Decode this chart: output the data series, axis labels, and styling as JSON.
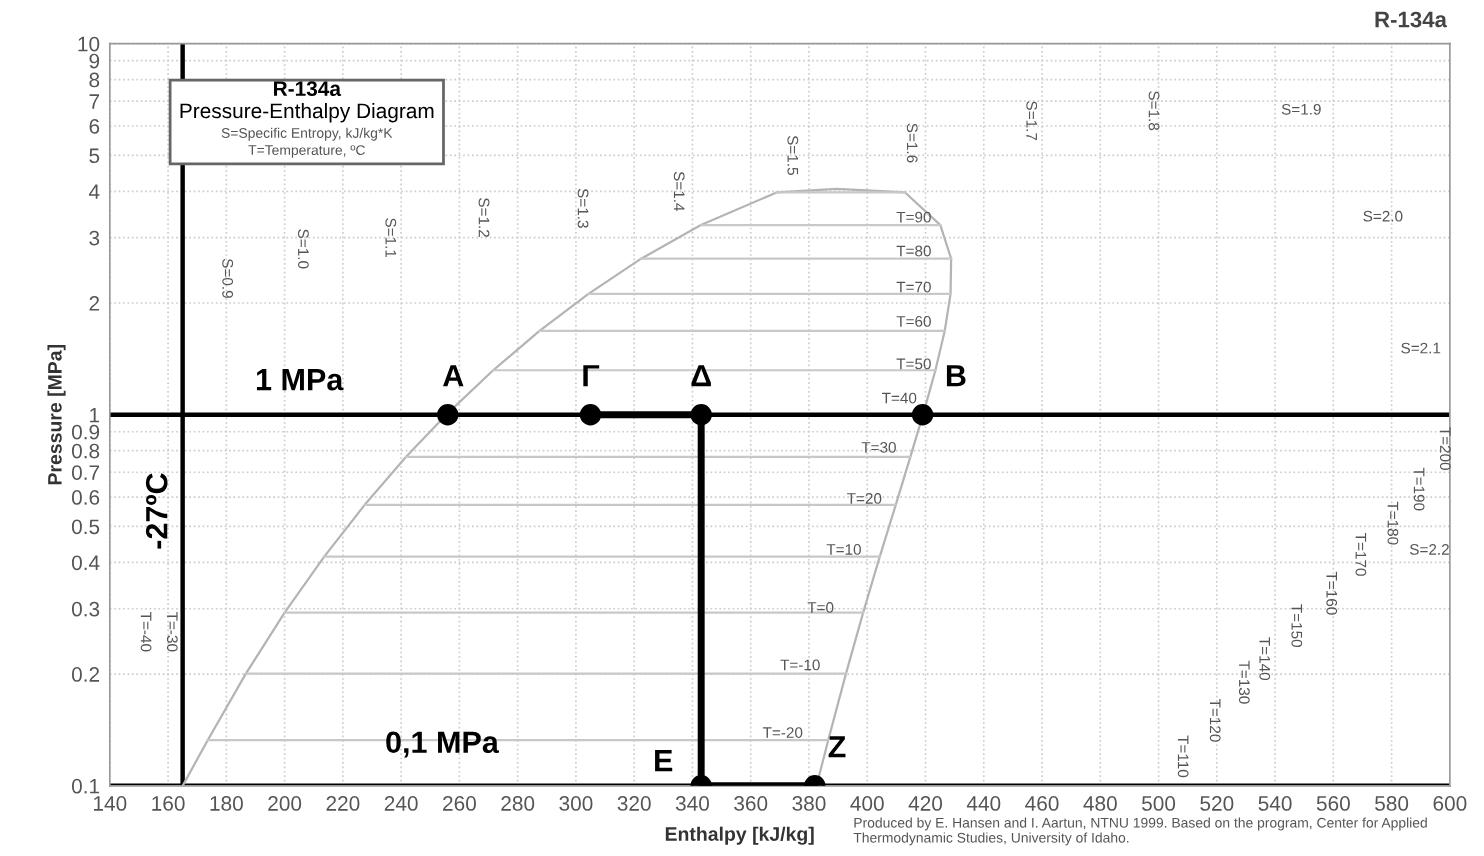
{
  "chart_data": {
    "type": "line",
    "title": "R-134a",
    "subtitle": "Pressure-Enthalpy Diagram",
    "xlabel": "Enthalpy [kJ/kg]",
    "ylabel": "Pressure [MPa]",
    "xlim": [
      140,
      600
    ],
    "xticks": [
      140,
      160,
      180,
      200,
      220,
      240,
      260,
      280,
      300,
      320,
      340,
      360,
      380,
      400,
      420,
      440,
      460,
      480,
      500,
      520,
      540,
      560,
      580,
      600
    ],
    "ylim": [
      0.1,
      10
    ],
    "yticks": [
      0.1,
      0.2,
      0.3,
      0.4,
      0.5,
      0.6,
      0.7,
      0.8,
      0.9,
      1,
      2,
      3,
      4,
      5,
      6,
      7,
      8,
      9,
      10
    ],
    "log": "y",
    "grid": true,
    "series": [
      {
        "color": "#b4b4b4",
        "x": [
          165.0,
          173.6,
          186.7,
          200.0,
          213.6,
          227.5,
          241.7,
          256.4,
          271.6,
          287.5,
          304.3,
          322.4,
          342.9,
          368.9,
          389.6,
          413.0,
          425.1,
          428.8,
          428.6,
          426.6,
          423.4,
          419.4,
          414.8,
          409.8,
          404.3,
          398.6,
          392.7,
          386.6,
          382.6
        ],
        "values": [
          0.1,
          0.1327,
          0.2006,
          0.2928,
          0.4146,
          0.5717,
          0.7702,
          1.0166,
          1.3179,
          1.6818,
          2.1168,
          2.6332,
          3.2442,
          3.972,
          4.059,
          3.972,
          3.2442,
          2.6332,
          2.1168,
          1.6818,
          1.3179,
          1.0166,
          0.7702,
          0.5717,
          0.4146,
          0.2928,
          0.2006,
          0.1327,
          0.1
        ]
      },
      {
        "color": "#c8c8c8",
        "x": [
          173.6,
          386.6
        ],
        "values": [
          0.1327,
          0.1327
        ]
      },
      {
        "color": "#c8c8c8",
        "x": [
          186.7,
          392.7
        ],
        "values": [
          0.2006,
          0.2006
        ]
      },
      {
        "color": "#c8c8c8",
        "x": [
          200.0,
          398.6
        ],
        "values": [
          0.2928,
          0.2928
        ]
      },
      {
        "color": "#c8c8c8",
        "x": [
          213.6,
          404.3
        ],
        "values": [
          0.4146,
          0.4146
        ]
      },
      {
        "color": "#c8c8c8",
        "x": [
          227.5,
          409.8
        ],
        "values": [
          0.5717,
          0.5717
        ]
      },
      {
        "color": "#c8c8c8",
        "x": [
          241.7,
          414.8
        ],
        "values": [
          0.7702,
          0.7702
        ]
      },
      {
        "color": "#c8c8c8",
        "x": [
          271.6,
          423.4
        ],
        "values": [
          1.3179,
          1.3179
        ]
      },
      {
        "color": "#c8c8c8",
        "x": [
          287.5,
          426.6
        ],
        "values": [
          1.6818,
          1.6818
        ]
      },
      {
        "color": "#c8c8c8",
        "x": [
          304.3,
          428.6
        ],
        "values": [
          2.1168,
          2.1168
        ]
      },
      {
        "color": "#c8c8c8",
        "x": [
          322.4,
          428.8
        ],
        "values": [
          2.6332,
          2.6332
        ]
      },
      {
        "color": "#c8c8c8",
        "x": [
          342.9,
          425.1
        ],
        "values": [
          3.2442,
          3.2442
        ]
      },
      {
        "color": "#c8c8c8",
        "x": [
          368.9,
          413.0
        ],
        "values": [
          3.972,
          3.972
        ]
      },
      {
        "color": "#000000",
        "x": [
          305,
          343,
          343,
          382
        ],
        "values": [
          1,
          1,
          0.1,
          0.1
        ]
      },
      {
        "type": "scatter",
        "color": "#000000",
        "marker": "circle",
        "x": [
          256,
          305,
          343,
          419,
          343,
          382
        ],
        "values": [
          1,
          1,
          1,
          1,
          0.1,
          0.1
        ]
      }
    ],
    "ref_lines": [
      {
        "axis": "y",
        "value": 1,
        "color": "#000000"
      },
      {
        "axis": "y",
        "value": 0.1,
        "color": "#000000"
      },
      {
        "axis": "x",
        "value": 165,
        "color": "#000000"
      }
    ],
    "annotations": [
      "S=Specific Entropy, kJ/kg*K",
      "T=Temperature, ºC",
      "R-134a",
      "Produced by E. Hansen and I. Aartun, NTNU 1999. Based on the program, Center for Applied Thermodynamic Studies, University of Idaho.",
      "1 MPa",
      "0,1 MPa",
      "-27ºC",
      {
        "text": "A",
        "x": 256,
        "y": 1
      },
      {
        "text": "Γ",
        "x": 305,
        "y": 1
      },
      {
        "text": "Δ",
        "x": 343,
        "y": 1
      },
      {
        "text": "B",
        "x": 419,
        "y": 1
      },
      {
        "text": "E",
        "x": 343,
        "y": 0.1
      },
      {
        "text": "Z",
        "x": 382,
        "y": 0.1
      },
      "S=0.9",
      "S=1.0",
      "S=1.1",
      "S=1.2",
      "S=1.3",
      "S=1.4",
      "S=1.5",
      "S=1.6",
      "S=1.7",
      "S=1.8",
      "T=-40",
      "T=-30",
      "T=110",
      "T=120",
      "T=130",
      "T=140",
      "T=150",
      "T=160",
      "T=170",
      "T=180",
      "T=190",
      "T=200",
      "S=1.9",
      "S=2.0",
      "S=2.1",
      "S=2.2",
      "T=90",
      "T=80",
      "T=70",
      "T=60",
      "T=50",
      "T=40",
      "T=30",
      "T=20",
      "T=10",
      "T=0",
      "T=-10",
      "T=-20"
    ]
  }
}
